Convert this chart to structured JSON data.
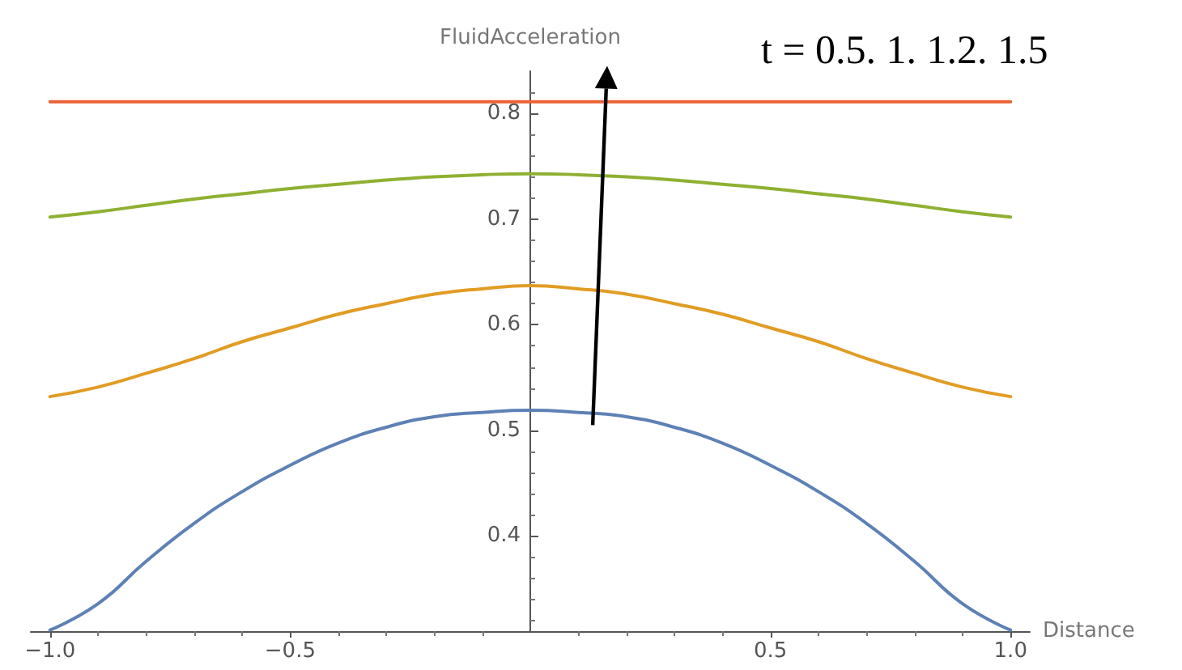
{
  "chart_data": {
    "type": "line",
    "xlabel": "Distance",
    "ylabel": "FluidAcceleration",
    "annotations": [
      "t = 0.5. 1. 1.2. 1.5"
    ],
    "x": [
      -1,
      -0.9,
      -0.8,
      -0.7,
      -0.6,
      -0.5,
      -0.4,
      -0.3,
      -0.2,
      -0.1,
      0,
      0.1,
      0.2,
      0.3,
      0.4,
      0.5,
      0.6,
      0.7,
      0.8,
      0.9,
      1
    ],
    "series": [
      {
        "color": "#5e81b5",
        "values": [
          0.311,
          0.336,
          0.376,
          0.412,
          0.442,
          0.467,
          0.488,
          0.503,
          0.513,
          0.517,
          0.519,
          0.517,
          0.513,
          0.503,
          0.488,
          0.467,
          0.442,
          0.412,
          0.376,
          0.336,
          0.311
        ]
      },
      {
        "color": "#e19c24",
        "values": [
          0.532,
          0.541,
          0.554,
          0.568,
          0.584,
          0.597,
          0.61,
          0.62,
          0.629,
          0.634,
          0.637,
          0.634,
          0.629,
          0.62,
          0.61,
          0.597,
          0.584,
          0.568,
          0.554,
          0.541,
          0.532
        ]
      },
      {
        "color": "#8fb032",
        "values": [
          0.702,
          0.707,
          0.713,
          0.719,
          0.724,
          0.729,
          0.733,
          0.737,
          0.74,
          0.742,
          0.743,
          0.742,
          0.74,
          0.737,
          0.733,
          0.729,
          0.724,
          0.719,
          0.713,
          0.707,
          0.702
        ]
      },
      {
        "color": "#eb6235",
        "values": [
          0.811,
          0.811,
          0.811,
          0.811,
          0.811,
          0.811,
          0.811,
          0.811,
          0.811,
          0.811,
          0.811,
          0.811,
          0.811,
          0.811,
          0.811,
          0.811,
          0.811,
          0.811,
          0.811,
          0.811,
          0.811
        ]
      }
    ],
    "xlim": [
      -1.04,
      1.04
    ],
    "ylim": [
      0.31,
      0.84
    ],
    "xticks": [
      {
        "value": -1,
        "label": "−1.0"
      },
      {
        "value": -0.5,
        "label": "−0.5"
      },
      0.5,
      {
        "value": 1,
        "label": "1.0"
      }
    ],
    "yticks": [
      0.4,
      0.5,
      0.6,
      0.7,
      0.8
    ],
    "grid": false,
    "marker": "none",
    "line_style": "solid"
  }
}
